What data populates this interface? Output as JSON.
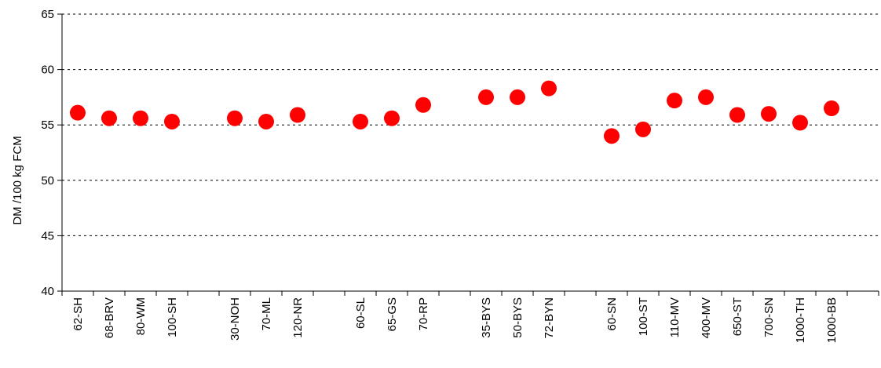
{
  "chart_data": {
    "type": "scatter",
    "title": "",
    "xlabel": "",
    "ylabel": "DM /100 kg FCM",
    "ylim": [
      40,
      65
    ],
    "yticks": [
      40,
      45,
      50,
      55,
      60,
      65
    ],
    "grid": "horizontal dashed",
    "legend": "none",
    "marker_color": "#ff0000",
    "slots": 26,
    "points": [
      {
        "label": "62-SH",
        "slot": 0,
        "y": 56.1
      },
      {
        "label": "68-BRV",
        "slot": 1,
        "y": 55.6
      },
      {
        "label": "80-WM",
        "slot": 2,
        "y": 55.6
      },
      {
        "label": "100-SH",
        "slot": 3,
        "y": 55.3
      },
      {
        "label": "30-NOH",
        "slot": 5,
        "y": 55.6
      },
      {
        "label": "70-ML",
        "slot": 6,
        "y": 55.3
      },
      {
        "label": "120-NR",
        "slot": 7,
        "y": 55.9
      },
      {
        "label": "60-SL",
        "slot": 9,
        "y": 55.3
      },
      {
        "label": "65-GS",
        "slot": 10,
        "y": 55.6
      },
      {
        "label": "70-RP",
        "slot": 11,
        "y": 56.8
      },
      {
        "label": "35-BYS",
        "slot": 13,
        "y": 57.5
      },
      {
        "label": "50-BYS",
        "slot": 14,
        "y": 57.5
      },
      {
        "label": "72-BYN",
        "slot": 15,
        "y": 58.3
      },
      {
        "label": "60-SN",
        "slot": 17,
        "y": 54.0
      },
      {
        "label": "100-ST",
        "slot": 18,
        "y": 54.6
      },
      {
        "label": "110-MV",
        "slot": 19,
        "y": 57.2
      },
      {
        "label": "400-MV",
        "slot": 20,
        "y": 57.5
      },
      {
        "label": "650-ST",
        "slot": 21,
        "y": 55.9
      },
      {
        "label": "700-SN",
        "slot": 22,
        "y": 56.0
      },
      {
        "label": "1000-TH",
        "slot": 23,
        "y": 55.2
      },
      {
        "label": "1000-BB",
        "slot": 24,
        "y": 56.5
      }
    ]
  }
}
